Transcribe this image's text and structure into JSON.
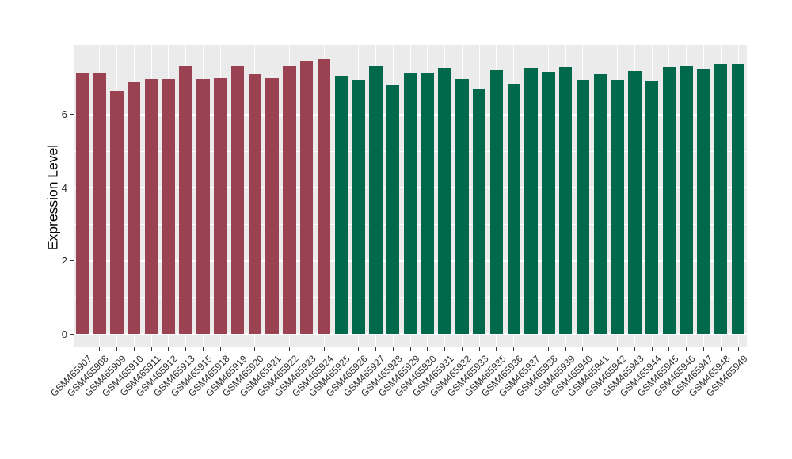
{
  "chart_data": {
    "type": "bar",
    "title": "",
    "xlabel": "",
    "ylabel": "Expression Level",
    "categories": [
      "GSM465907",
      "GSM465908",
      "GSM465909",
      "GSM465910",
      "GSM465911",
      "GSM465912",
      "GSM465913",
      "GSM465915",
      "GSM465918",
      "GSM465919",
      "GSM465920",
      "GSM465921",
      "GSM465922",
      "GSM465923",
      "GSM465924",
      "GSM465925",
      "GSM465926",
      "GSM465927",
      "GSM465928",
      "GSM465929",
      "GSM465930",
      "GSM465931",
      "GSM465932",
      "GSM465933",
      "GSM465935",
      "GSM465936",
      "GSM465937",
      "GSM465938",
      "GSM465939",
      "GSM465940",
      "GSM465941",
      "GSM465942",
      "GSM465943",
      "GSM465944",
      "GSM465945",
      "GSM465946",
      "GSM465947",
      "GSM465948",
      "GSM465949"
    ],
    "values": [
      7.15,
      7.15,
      6.64,
      6.88,
      6.98,
      6.98,
      7.34,
      6.98,
      6.99,
      7.31,
      7.11,
      6.99,
      7.32,
      7.47,
      7.53,
      7.06,
      6.94,
      7.34,
      6.8,
      7.14,
      7.15,
      7.27,
      6.98,
      6.72,
      7.2,
      6.84,
      7.28,
      7.16,
      7.29,
      6.95,
      7.11,
      6.95,
      7.18,
      6.93,
      7.29,
      7.32,
      7.25,
      7.39,
      7.39
    ],
    "groups": [
      {
        "name": "group-1",
        "color": "#9B4252",
        "count": 15
      },
      {
        "name": "group-2",
        "color": "#00694B",
        "count": 24
      }
    ],
    "y_major_ticks": [
      0,
      2,
      4,
      6
    ],
    "y_minor_ticks": [
      1,
      3,
      5,
      7
    ],
    "ylim": [
      0,
      7.9
    ],
    "grid": "on",
    "legend": "none",
    "colors": {
      "panel_background": "#EBEBEB",
      "gridline": "#FFFFFF",
      "tick_mark": "#333333",
      "tick_text": "#2B2B2B",
      "axis_title_text": "#000000"
    }
  }
}
